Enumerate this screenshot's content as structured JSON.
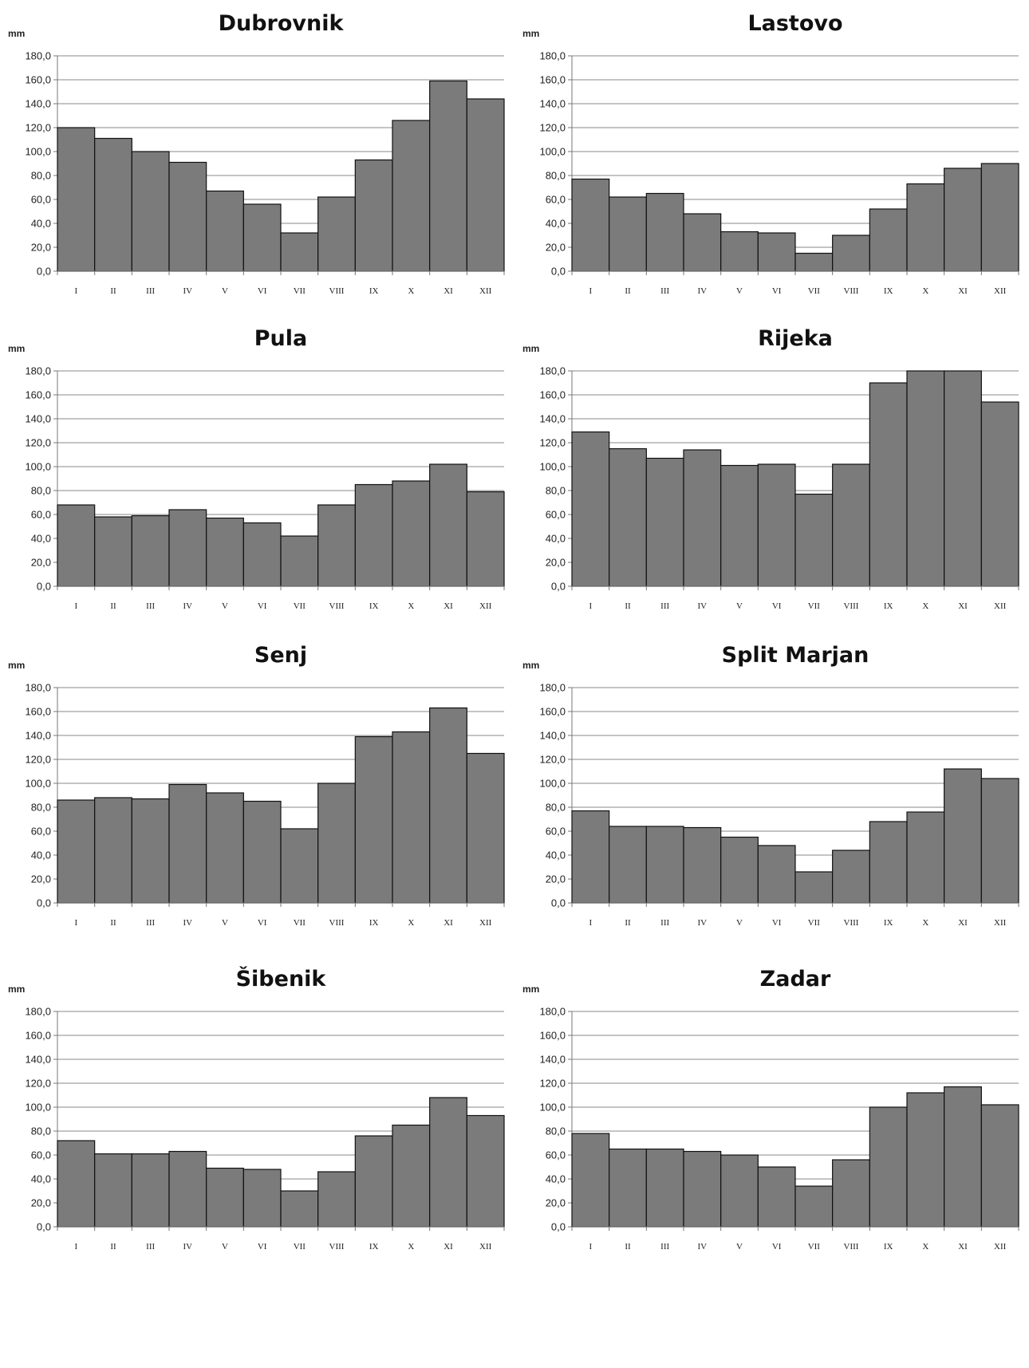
{
  "chart_data": [
    {
      "type": "bar",
      "title": "Dubrovnik",
      "ylabel": "mm",
      "ylim": [
        0,
        180
      ],
      "yticks": [
        "0,0",
        "20,0",
        "40,0",
        "60,0",
        "80,0",
        "100,0",
        "120,0",
        "140,0",
        "160,0",
        "180,0"
      ],
      "categories": [
        "I",
        "II",
        "III",
        "IV",
        "V",
        "VI",
        "VII",
        "VIII",
        "IX",
        "X",
        "XI",
        "XII"
      ],
      "values": [
        120,
        111,
        100,
        91,
        67,
        56,
        32,
        62,
        93,
        126,
        159,
        144
      ],
      "grid": true
    },
    {
      "type": "bar",
      "title": "Lastovo",
      "ylabel": "mm",
      "ylim": [
        0,
        180
      ],
      "yticks": [
        "0,0",
        "20,0",
        "40,0",
        "60,0",
        "80,0",
        "100,0",
        "120,0",
        "140,0",
        "160,0",
        "180,0"
      ],
      "categories": [
        "I",
        "II",
        "III",
        "IV",
        "V",
        "VI",
        "VII",
        "VIII",
        "IX",
        "X",
        "XI",
        "XII"
      ],
      "values": [
        77,
        62,
        65,
        48,
        33,
        32,
        15,
        30,
        52,
        73,
        86,
        90
      ],
      "grid": true
    },
    {
      "type": "bar",
      "title": "Pula",
      "ylabel": "mm",
      "ylim": [
        0,
        180
      ],
      "yticks": [
        "0,0",
        "20,0",
        "40,0",
        "60,0",
        "80,0",
        "100,0",
        "120,0",
        "140,0",
        "160,0",
        "180,0"
      ],
      "categories": [
        "I",
        "II",
        "III",
        "IV",
        "V",
        "VI",
        "VII",
        "VIII",
        "IX",
        "X",
        "XI",
        "XII"
      ],
      "values": [
        68,
        58,
        59,
        64,
        57,
        53,
        42,
        68,
        85,
        88,
        102,
        79
      ],
      "grid": true
    },
    {
      "type": "bar",
      "title": "Rijeka",
      "ylabel": "mm",
      "ylim": [
        0,
        180
      ],
      "yticks": [
        "0,0",
        "20,0",
        "40,0",
        "60,0",
        "80,0",
        "100,0",
        "120,0",
        "140,0",
        "160,0",
        "180,0"
      ],
      "categories": [
        "I",
        "II",
        "III",
        "IV",
        "V",
        "VI",
        "VII",
        "VIII",
        "IX",
        "X",
        "XI",
        "XII"
      ],
      "values": [
        129,
        115,
        107,
        114,
        101,
        102,
        77,
        102,
        170,
        180,
        180,
        154
      ],
      "grid": true
    },
    {
      "type": "bar",
      "title": "Senj",
      "ylabel": "mm",
      "ylim": [
        0,
        180
      ],
      "yticks": [
        "0,0",
        "20,0",
        "40,0",
        "60,0",
        "80,0",
        "100,0",
        "120,0",
        "140,0",
        "160,0",
        "180,0"
      ],
      "categories": [
        "I",
        "II",
        "III",
        "IV",
        "V",
        "VI",
        "VII",
        "VIII",
        "IX",
        "X",
        "XI",
        "XII"
      ],
      "values": [
        86,
        88,
        87,
        99,
        92,
        85,
        62,
        100,
        139,
        143,
        163,
        125
      ],
      "grid": true
    },
    {
      "type": "bar",
      "title": "Split Marjan",
      "ylabel": "mm",
      "ylim": [
        0,
        180
      ],
      "yticks": [
        "0,0",
        "20,0",
        "40,0",
        "60,0",
        "80,0",
        "100,0",
        "120,0",
        "140,0",
        "160,0",
        "180,0"
      ],
      "categories": [
        "I",
        "II",
        "III",
        "IV",
        "V",
        "VI",
        "VII",
        "VIII",
        "IX",
        "X",
        "XI",
        "XII"
      ],
      "values": [
        77,
        64,
        64,
        63,
        55,
        48,
        26,
        44,
        68,
        76,
        112,
        104
      ],
      "grid": true
    },
    {
      "type": "bar",
      "title": "Šibenik",
      "ylabel": "mm",
      "ylim": [
        0,
        180
      ],
      "yticks": [
        "0,0",
        "20,0",
        "40,0",
        "60,0",
        "80,0",
        "100,0",
        "120,0",
        "140,0",
        "160,0",
        "180,0"
      ],
      "categories": [
        "I",
        "II",
        "III",
        "IV",
        "V",
        "VI",
        "VII",
        "VIII",
        "IX",
        "X",
        "XI",
        "XII"
      ],
      "values": [
        72,
        61,
        61,
        63,
        49,
        48,
        30,
        46,
        76,
        85,
        108,
        93
      ],
      "grid": true
    },
    {
      "type": "bar",
      "title": "Zadar",
      "ylabel": "mm",
      "ylim": [
        0,
        180
      ],
      "yticks": [
        "0,0",
        "20,0",
        "40,0",
        "60,0",
        "80,0",
        "100,0",
        "120,0",
        "140,0",
        "160,0",
        "180,0"
      ],
      "categories": [
        "I",
        "II",
        "III",
        "IV",
        "V",
        "VI",
        "VII",
        "VIII",
        "IX",
        "X",
        "XI",
        "XII"
      ],
      "values": [
        78,
        65,
        65,
        63,
        60,
        50,
        34,
        56,
        100,
        112,
        117,
        102
      ],
      "grid": true
    }
  ]
}
